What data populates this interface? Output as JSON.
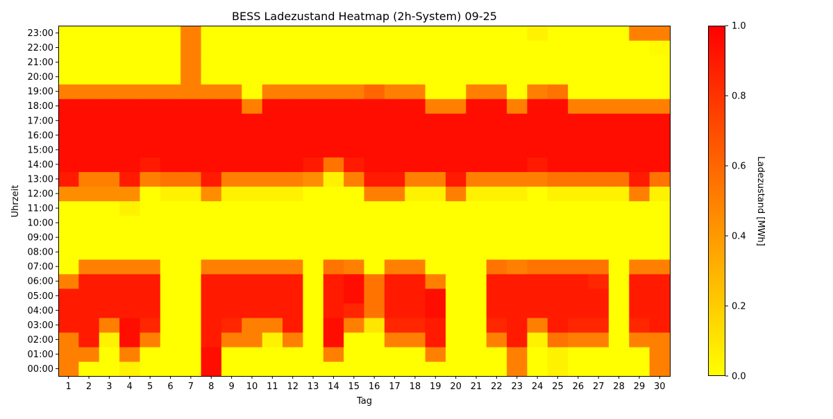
{
  "chart_data": {
    "type": "heatmap",
    "title": "BESS Ladezustand Heatmap (2h-System) 09-25",
    "xlabel": "Tag",
    "ylabel": "Uhrzeit",
    "x_categories": [
      "1",
      "2",
      "3",
      "4",
      "5",
      "6",
      "7",
      "8",
      "9",
      "10",
      "11",
      "12",
      "13",
      "14",
      "15",
      "16",
      "17",
      "18",
      "19",
      "20",
      "21",
      "22",
      "23",
      "24",
      "25",
      "26",
      "27",
      "28",
      "29",
      "30"
    ],
    "y_categories": [
      "00:00",
      "01:00",
      "02:00",
      "03:00",
      "04:00",
      "05:00",
      "06:00",
      "07:00",
      "08:00",
      "09:00",
      "10:00",
      "11:00",
      "12:00",
      "13:00",
      "14:00",
      "15:00",
      "16:00",
      "17:00",
      "18:00",
      "19:00",
      "20:00",
      "21:00",
      "22:00",
      "23:00"
    ],
    "colorbar": {
      "label": "Ladezustand [MWh]",
      "range": [
        0.0,
        1.0
      ],
      "ticks": [
        "0.0",
        "0.2",
        "0.4",
        "0.6",
        "0.8",
        "1.0"
      ],
      "colormap": [
        "#ffff00",
        "#ff8000",
        "#ff0000"
      ]
    },
    "values": [
      [
        0.5,
        0,
        0,
        0.05,
        0,
        0,
        0,
        0.95,
        0,
        0,
        0,
        0,
        0,
        0,
        0,
        0,
        0,
        0,
        0,
        0,
        0,
        0,
        0.5,
        0,
        0.05,
        0,
        0,
        0,
        0,
        0.5
      ],
      [
        0.5,
        0.5,
        0,
        0.5,
        0,
        0,
        0,
        0.95,
        0,
        0,
        0,
        0,
        0,
        0.5,
        0,
        0,
        0,
        0,
        0.5,
        0,
        0,
        0,
        0.5,
        0,
        0.05,
        0,
        0,
        0,
        0,
        0.5
      ],
      [
        0.5,
        0.9,
        0.05,
        0.95,
        0.5,
        0,
        0,
        0.9,
        0.5,
        0.5,
        0.05,
        0.5,
        0,
        0.95,
        0,
        0,
        0.5,
        0.5,
        0.9,
        0,
        0,
        0.5,
        0.9,
        0.05,
        0.55,
        0.5,
        0.5,
        0,
        0.5,
        0.5
      ],
      [
        0.9,
        0.9,
        0.5,
        0.95,
        0.85,
        0,
        0,
        0.9,
        0.85,
        0.5,
        0.5,
        0.9,
        0,
        0.95,
        0.5,
        0.1,
        0.85,
        0.85,
        0.9,
        0,
        0,
        0.85,
        0.9,
        0.5,
        0.9,
        0.85,
        0.85,
        0,
        0.85,
        0.9
      ],
      [
        0.9,
        0.9,
        0.9,
        0.9,
        0.9,
        0,
        0,
        0.9,
        0.9,
        0.9,
        0.9,
        0.9,
        0,
        0.9,
        0.85,
        0.55,
        0.9,
        0.9,
        0.95,
        0,
        0,
        0.9,
        0.9,
        0.9,
        0.9,
        0.9,
        0.9,
        0,
        0.9,
        0.9
      ],
      [
        0.9,
        0.9,
        0.9,
        0.9,
        0.9,
        0,
        0,
        0.9,
        0.9,
        0.9,
        0.9,
        0.9,
        0,
        0.9,
        0.95,
        0.55,
        0.9,
        0.9,
        0.95,
        0,
        0,
        0.9,
        0.9,
        0.9,
        0.9,
        0.9,
        0.9,
        0,
        0.9,
        0.9
      ],
      [
        0.5,
        0.9,
        0.9,
        0.9,
        0.9,
        0,
        0,
        0.9,
        0.9,
        0.9,
        0.9,
        0.9,
        0,
        0.9,
        0.95,
        0.55,
        0.9,
        0.9,
        0.5,
        0,
        0,
        0.9,
        0.9,
        0.9,
        0.9,
        0.9,
        0.85,
        0,
        0.9,
        0.9
      ],
      [
        0,
        0.5,
        0.5,
        0.5,
        0.5,
        0,
        0,
        0.5,
        0.5,
        0.5,
        0.5,
        0.5,
        0,
        0.55,
        0.5,
        0,
        0.5,
        0.5,
        0,
        0,
        0,
        0.55,
        0.5,
        0.55,
        0.55,
        0.55,
        0.55,
        0,
        0.5,
        0.5
      ],
      [
        0,
        0,
        0,
        0,
        0,
        0,
        0,
        0,
        0,
        0,
        0,
        0,
        0,
        0,
        0,
        0,
        0,
        0,
        0,
        0,
        0,
        0,
        0,
        0,
        0,
        0,
        0,
        0,
        0,
        0
      ],
      [
        0,
        0,
        0,
        0,
        0,
        0,
        0,
        0,
        0,
        0,
        0,
        0,
        0,
        0,
        0,
        0,
        0,
        0,
        0,
        0,
        0,
        0,
        0,
        0,
        0,
        0,
        0,
        0,
        0,
        0
      ],
      [
        0,
        0,
        0,
        0,
        0,
        0,
        0,
        0,
        0,
        0,
        0,
        0,
        0,
        0,
        0,
        0,
        0,
        0,
        0,
        0,
        0,
        0,
        0,
        0,
        0,
        0,
        0,
        0,
        0,
        0
      ],
      [
        0,
        0,
        0,
        0.05,
        0,
        0,
        0,
        0,
        0,
        0,
        0,
        0,
        0,
        0,
        0,
        0,
        0,
        0,
        0,
        0,
        0,
        0,
        0,
        0,
        0,
        0,
        0,
        0,
        0,
        0
      ],
      [
        0.45,
        0.45,
        0.45,
        0.45,
        0,
        0.05,
        0.05,
        0.45,
        0.05,
        0.05,
        0.05,
        0.05,
        0,
        0,
        0,
        0.5,
        0.5,
        0.05,
        0.05,
        0.5,
        0.05,
        0.05,
        0.05,
        0,
        0.05,
        0.05,
        0.05,
        0.05,
        0.5,
        0.05
      ],
      [
        0.9,
        0.5,
        0.5,
        0.9,
        0.5,
        0.55,
        0.55,
        0.9,
        0.5,
        0.5,
        0.5,
        0.5,
        0.45,
        0.05,
        0.5,
        0.9,
        0.9,
        0.5,
        0.5,
        0.9,
        0.5,
        0.5,
        0.5,
        0.5,
        0.55,
        0.55,
        0.55,
        0.55,
        0.9,
        0.55
      ],
      [
        0.95,
        0.95,
        0.95,
        0.95,
        0.9,
        0.95,
        0.95,
        0.95,
        0.95,
        0.95,
        0.95,
        0.95,
        0.9,
        0.55,
        0.9,
        0.95,
        0.95,
        0.95,
        0.95,
        0.95,
        0.95,
        0.95,
        0.95,
        0.9,
        0.95,
        0.95,
        0.95,
        0.95,
        0.95,
        0.95
      ],
      [
        0.95,
        0.95,
        0.95,
        0.95,
        0.95,
        0.95,
        0.95,
        0.95,
        0.95,
        0.95,
        0.95,
        0.95,
        0.95,
        0.95,
        0.95,
        0.95,
        0.95,
        0.95,
        0.95,
        0.95,
        0.95,
        0.95,
        0.95,
        0.95,
        0.95,
        0.95,
        0.95,
        0.95,
        0.95,
        0.95
      ],
      [
        0.95,
        0.95,
        0.95,
        0.95,
        0.95,
        0.95,
        0.95,
        0.95,
        0.95,
        0.95,
        0.95,
        0.95,
        0.95,
        0.95,
        0.95,
        0.95,
        0.95,
        0.95,
        0.95,
        0.95,
        0.95,
        0.95,
        0.95,
        0.95,
        0.95,
        0.95,
        0.95,
        0.95,
        0.95,
        0.95
      ],
      [
        0.95,
        0.95,
        0.95,
        0.95,
        0.95,
        0.95,
        0.95,
        0.95,
        0.95,
        0.95,
        0.95,
        0.95,
        0.95,
        0.95,
        0.95,
        0.95,
        0.95,
        0.95,
        0.95,
        0.95,
        0.95,
        0.95,
        0.95,
        0.95,
        0.95,
        0.95,
        0.95,
        0.95,
        0.95,
        0.95
      ],
      [
        0.95,
        0.95,
        0.95,
        0.95,
        0.95,
        0.95,
        0.95,
        0.95,
        0.95,
        0.5,
        0.95,
        0.95,
        0.95,
        0.95,
        0.95,
        0.95,
        0.95,
        0.95,
        0.5,
        0.5,
        0.95,
        0.95,
        0.5,
        0.95,
        0.95,
        0.5,
        0.5,
        0.5,
        0.5,
        0.5
      ],
      [
        0.5,
        0.5,
        0.5,
        0.5,
        0.5,
        0.5,
        0.5,
        0.5,
        0.5,
        0,
        0.5,
        0.5,
        0.5,
        0.5,
        0.5,
        0.6,
        0.5,
        0.5,
        0,
        0,
        0.5,
        0.5,
        0,
        0.5,
        0.55,
        0,
        0,
        0,
        0,
        0
      ],
      [
        0,
        0,
        0,
        0,
        0,
        0,
        0.5,
        0,
        0,
        0,
        0,
        0,
        0,
        0,
        0,
        0,
        0,
        0,
        0,
        0,
        0,
        0,
        0,
        0,
        0,
        0,
        0,
        0,
        0,
        0
      ],
      [
        0,
        0,
        0,
        0,
        0,
        0,
        0.5,
        0,
        0,
        0,
        0,
        0,
        0,
        0,
        0,
        0,
        0,
        0,
        0,
        0,
        0,
        0,
        0,
        0,
        0,
        0,
        0,
        0,
        0,
        0
      ],
      [
        0,
        0,
        0,
        0,
        0,
        0,
        0.5,
        0,
        0,
        0,
        0,
        0,
        0,
        0,
        0,
        0,
        0,
        0,
        0,
        0,
        0,
        0,
        0,
        0,
        0,
        0,
        0,
        0,
        0,
        0.02
      ],
      [
        0,
        0,
        0,
        0,
        0,
        0,
        0.5,
        0,
        0,
        0,
        0,
        0,
        0,
        0,
        0,
        0,
        0,
        0,
        0,
        0,
        0,
        0,
        0,
        0.05,
        0,
        0,
        0,
        0,
        0.5,
        0.5
      ]
    ]
  }
}
